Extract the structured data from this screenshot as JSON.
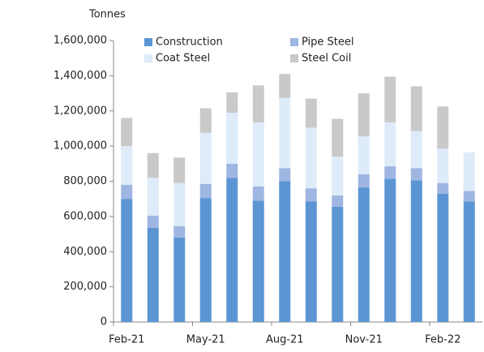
{
  "chart_data": {
    "type": "stacked_bar",
    "y_axis_label": "Tonnes",
    "categories": [
      "Feb-21",
      null,
      null,
      "May-21",
      null,
      null,
      "Aug-21",
      null,
      null,
      "Nov-21",
      null,
      null,
      "Feb-22",
      null
    ],
    "series": [
      {
        "name": "Construction",
        "color": "#5b96d3",
        "values": [
          700000,
          535000,
          480000,
          705000,
          820000,
          690000,
          800000,
          685000,
          655000,
          765000,
          815000,
          805000,
          730000,
          685000
        ]
      },
      {
        "name": "Pipe Steel",
        "color": "#9fb5e2",
        "values": [
          80000,
          70000,
          65000,
          80000,
          80000,
          80000,
          75000,
          75000,
          65000,
          75000,
          70000,
          70000,
          60000,
          60000
        ]
      },
      {
        "name": "Coat Steel",
        "color": "#deebf8",
        "values": [
          220000,
          215000,
          245000,
          290000,
          290000,
          365000,
          400000,
          345000,
          220000,
          215000,
          250000,
          210000,
          195000,
          220000
        ]
      },
      {
        "name": "Steel Coil",
        "color": "#c9c9c9",
        "values": [
          160000,
          140000,
          145000,
          140000,
          115000,
          210000,
          135000,
          165000,
          215000,
          245000,
          260000,
          255000,
          240000,
          null
        ]
      }
    ],
    "ylim": [
      0,
      1600000
    ],
    "yticks": [
      0,
      {
        "value": 200000,
        "label": "200,000"
      },
      {
        "value": 400000,
        "label": "400,000"
      },
      {
        "value": 600000,
        "label": "600,000"
      },
      {
        "value": 800000,
        "label": "800,000"
      },
      {
        "value": 1000000,
        "label": "1,000,000"
      },
      {
        "value": 1200000,
        "label": "1,200,000"
      },
      {
        "value": 1400000,
        "label": "1,400,000"
      },
      {
        "value": 1600000,
        "label": "1,600,000"
      }
    ],
    "legend": "top"
  }
}
